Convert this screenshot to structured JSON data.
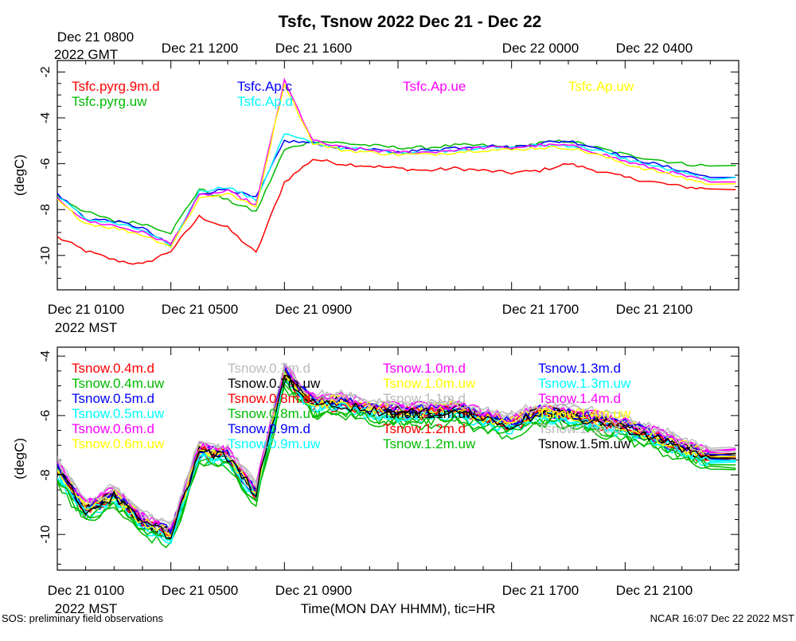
{
  "title": "Tsfc, Tsnow 2022 Dec 21 - Dec 22",
  "top_time_labels": {
    "first_line1": "Dec 21 0800",
    "first_line2": "2022 GMT",
    "ticks": [
      "Dec 21 1200",
      "Dec 21 1600",
      "Dec 22 0000",
      "Dec 22 0400"
    ]
  },
  "panel_time_labels": {
    "first": "Dec 21 0100",
    "first_line2": "2022 MST",
    "ticks": [
      "Dec 21 0500",
      "Dec 21 0900",
      "Dec 21 1700",
      "Dec 21 2100"
    ]
  },
  "xlabel": "Time(MON DAY HHMM), tic=HR",
  "footer_left": "SOS: preliminary field observations",
  "footer_right": "NCAR 16:07 Dec 22 2022 MST",
  "chart_data": [
    {
      "type": "line",
      "ylabel": "(degC)",
      "x_hours_mst": [
        1,
        2,
        3,
        4,
        5,
        6,
        7,
        8,
        9,
        10,
        11,
        12,
        13,
        14,
        15,
        16,
        17,
        18,
        19,
        20,
        21,
        22,
        23,
        24
      ],
      "ylim": [
        -11.5,
        -1.5
      ],
      "yticks": [
        -10,
        -8,
        -6,
        -4,
        -2
      ],
      "series": [
        {
          "name": "Tsfc.pyrg.9m.d",
          "color": "#ff0000",
          "values": [
            -9.2,
            -9.8,
            -10.2,
            -10.4,
            -9.8,
            -8.3,
            -8.8,
            -9.9,
            -6.8,
            -5.8,
            -6.0,
            -6.1,
            -6.2,
            -6.3,
            -6.2,
            -6.3,
            -6.4,
            -6.3,
            -6.0,
            -6.3,
            -6.6,
            -6.8,
            -7.0,
            -7.1
          ]
        },
        {
          "name": "Tsfc.pyrg.uw",
          "color": "#00bb00",
          "values": [
            -7.4,
            -8.1,
            -8.5,
            -8.6,
            -9.0,
            -7.1,
            -7.6,
            -8.1,
            -5.4,
            -5.0,
            -5.1,
            -5.2,
            -5.3,
            -5.3,
            -5.2,
            -5.2,
            -5.3,
            -5.1,
            -5.0,
            -5.3,
            -5.6,
            -5.8,
            -6.0,
            -6.1
          ]
        },
        {
          "name": "Tsfc.Ap.c",
          "color": "#0000ff",
          "values": [
            -7.3,
            -8.4,
            -8.5,
            -8.8,
            -9.6,
            -7.3,
            -7.1,
            -7.5,
            -5.0,
            -5.1,
            -5.3,
            -5.4,
            -5.5,
            -5.4,
            -5.3,
            -5.2,
            -5.3,
            -5.1,
            -5.0,
            -5.3,
            -5.7,
            -6.0,
            -6.3,
            -6.6
          ]
        },
        {
          "name": "Tsfc.Ap.d",
          "color": "#00ffff",
          "values": [
            -7.4,
            -8.4,
            -8.6,
            -8.9,
            -9.6,
            -7.2,
            -7.0,
            -7.6,
            -4.7,
            -5.1,
            -5.3,
            -5.4,
            -5.5,
            -5.5,
            -5.4,
            -5.3,
            -5.3,
            -5.2,
            -5.2,
            -5.4,
            -5.8,
            -6.1,
            -6.4,
            -6.7
          ]
        },
        {
          "name": "Tsfc.Ap.ue",
          "color": "#ff00ff",
          "values": [
            -7.5,
            -8.5,
            -8.7,
            -9.0,
            -9.5,
            -7.4,
            -7.2,
            -7.8,
            -2.4,
            -5.0,
            -5.3,
            -5.4,
            -5.5,
            -5.5,
            -5.4,
            -5.3,
            -5.3,
            -5.2,
            -5.2,
            -5.5,
            -5.9,
            -6.2,
            -6.5,
            -6.8
          ]
        },
        {
          "name": "Tsfc.Ap.uw",
          "color": "#ffff00",
          "values": [
            -7.6,
            -8.6,
            -8.8,
            -9.1,
            -9.6,
            -7.5,
            -7.3,
            -7.9,
            -2.5,
            -5.1,
            -5.4,
            -5.5,
            -5.6,
            -5.6,
            -5.5,
            -5.4,
            -5.4,
            -5.3,
            -5.3,
            -5.6,
            -6.0,
            -6.3,
            -6.6,
            -6.9
          ]
        }
      ]
    },
    {
      "type": "line",
      "ylabel": "(degC)",
      "x_hours_mst": [
        1,
        2,
        3,
        4,
        5,
        6,
        7,
        8,
        9,
        10,
        11,
        12,
        13,
        14,
        15,
        16,
        17,
        18,
        19,
        20,
        21,
        22,
        23,
        24
      ],
      "ylim": [
        -11.2,
        -3.7
      ],
      "yticks": [
        -10,
        -8,
        -6,
        -4
      ],
      "base_values": [
        -7.8,
        -9.2,
        -8.7,
        -9.6,
        -10.0,
        -7.2,
        -7.4,
        -8.6,
        -4.6,
        -5.6,
        -5.6,
        -5.8,
        -5.9,
        -5.9,
        -5.8,
        -6.1,
        -6.3,
        -5.9,
        -6.0,
        -6.2,
        -6.4,
        -6.7,
        -7.1,
        -7.4
      ],
      "series": [
        {
          "name": "Tsnow.0.4m.d",
          "color": "#ff0000",
          "offset": -0.1
        },
        {
          "name": "Tsnow.0.4m.uw",
          "color": "#00bb00",
          "offset": -0.4
        },
        {
          "name": "Tsnow.0.5m.d",
          "color": "#0000ff",
          "offset": -0.05
        },
        {
          "name": "Tsnow.0.5m.uw",
          "color": "#00ffff",
          "offset": -0.2
        },
        {
          "name": "Tsnow.0.6m.d",
          "color": "#ff00ff",
          "offset": 0.15
        },
        {
          "name": "Tsnow.0.6m.uw",
          "color": "#ffff00",
          "offset": 0.05
        },
        {
          "name": "Tsnow.0.7m.d",
          "color": "#bbbbbb",
          "offset": 0.25
        },
        {
          "name": "Tsnow.0.7m.uw",
          "color": "#000000",
          "offset": 0.0
        },
        {
          "name": "Tsnow.0.8m.d",
          "color": "#ff0000",
          "offset": 0.1
        },
        {
          "name": "Tsnow.0.8m.uw",
          "color": "#00bb00",
          "offset": -0.25
        },
        {
          "name": "Tsnow.0.9m.d",
          "color": "#0000ff",
          "offset": 0.08
        },
        {
          "name": "Tsnow.0.9m.uw",
          "color": "#00ffff",
          "offset": -0.15
        },
        {
          "name": "Tsnow.1.0m.d",
          "color": "#ff00ff",
          "offset": 0.2
        },
        {
          "name": "Tsnow.1.0m.uw",
          "color": "#ffff00",
          "offset": 0.12
        },
        {
          "name": "Tsnow.1.1m.d",
          "color": "#bbbbbb",
          "offset": 0.3
        },
        {
          "name": "Tsnow.1.1m.uw",
          "color": "#000000",
          "offset": 0.05
        },
        {
          "name": "Tsnow.1.2m.d",
          "color": "#ff0000",
          "offset": 0.02
        },
        {
          "name": "Tsnow.1.2m.uw",
          "color": "#00bb00",
          "offset": -0.3
        },
        {
          "name": "Tsnow.1.3m.d",
          "color": "#0000ff",
          "offset": 0.1
        },
        {
          "name": "Tsnow.1.3m.uw",
          "color": "#00ffff",
          "offset": -0.1
        },
        {
          "name": "Tsnow.1.4m.d",
          "color": "#ff00ff",
          "offset": 0.18
        },
        {
          "name": "Tsnow.1.4m.uw",
          "color": "#ffff00",
          "offset": 0.0
        },
        {
          "name": "Tsnow.1.5m.d",
          "color": "#bbbbbb",
          "offset": 0.22
        },
        {
          "name": "Tsnow.1.5m.uw",
          "color": "#000000",
          "offset": -0.02
        }
      ]
    }
  ]
}
